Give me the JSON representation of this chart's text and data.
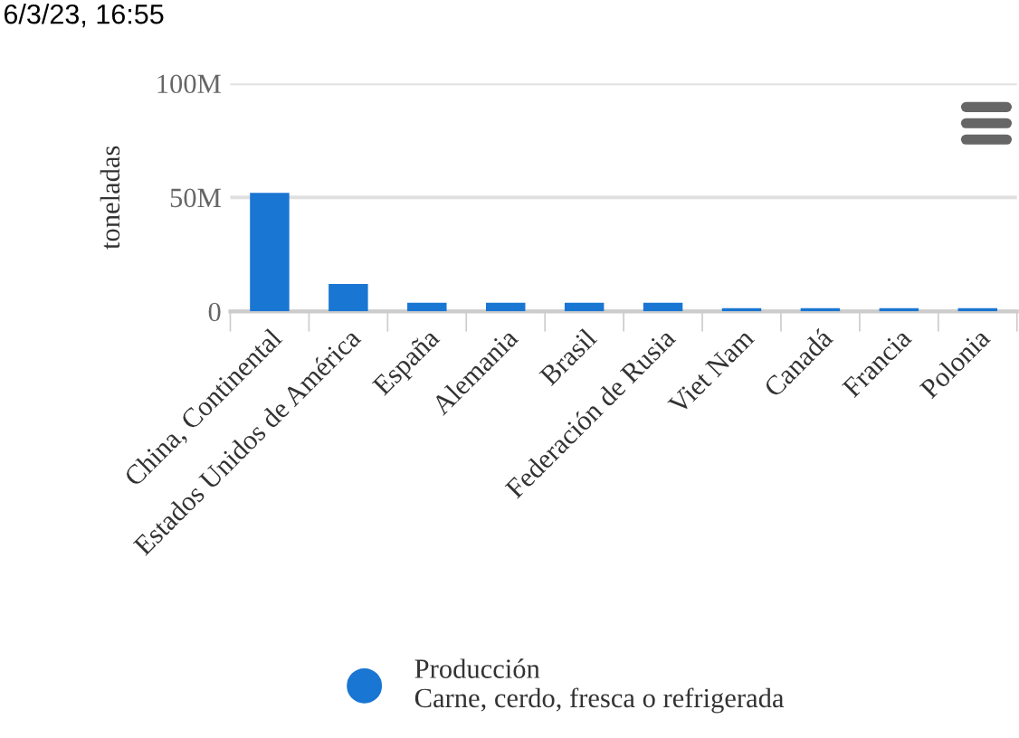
{
  "chart_data": {
    "type": "bar",
    "ylabel": "toneladas",
    "annotations": [
      "6/3/23, 16:55"
    ],
    "categories": [
      "China, Continental",
      "Estados Unidos de América",
      "España",
      "Alemania",
      "Brasil",
      "Federación de Rusia",
      "Viet Nam",
      "Canadá",
      "Francia",
      "Polonia"
    ],
    "series": [
      {
        "name": "Producción\nCarne, cerdo, fresca o refrigerada",
        "color": "#1976d2",
        "values": [
          52000000,
          12000000,
          3800000,
          3800000,
          3800000,
          3800000,
          1400000,
          1400000,
          1400000,
          1400000
        ]
      }
    ],
    "ylim": [
      0,
      100000000
    ],
    "yticks": [
      {
        "value": 0,
        "label": "0"
      },
      {
        "value": 50000000,
        "label": "50M"
      },
      {
        "value": 100000000,
        "label": "100M"
      }
    ],
    "grid": "y",
    "legend": "bottom",
    "marker": "circle"
  }
}
